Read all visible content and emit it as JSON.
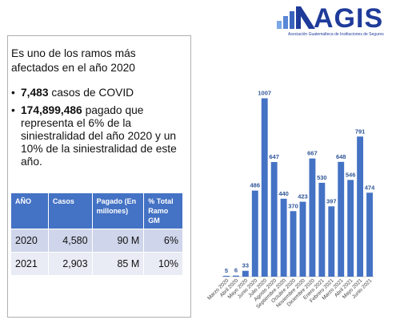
{
  "logo": {
    "text": "AGIS",
    "subtitle": "Asociación Guatemalteca de Instituciones de Seguros"
  },
  "intro": "Es uno de los ramos más afectados en el año 2020",
  "bullets": [
    {
      "bold": "7,483",
      "rest": " casos de COVID"
    },
    {
      "bold": "174,899,486",
      "rest": " pagado que representa el 6% de la siniestralidad del año 2020 y un 10% de la siniestralidad de este año."
    }
  ],
  "table": {
    "headers": [
      "AÑO",
      "Casos",
      "Pagado (En millones)",
      "% Total Ramo GM"
    ],
    "rows": [
      [
        "2020",
        "4,580",
        "90 M",
        "6%"
      ],
      [
        "2021",
        "2,903",
        "85 M",
        "10%"
      ]
    ]
  },
  "colors": {
    "bar": "#4472c4",
    "label": "#2f5597",
    "header": "#4472c4",
    "logo": "#1f3b9a"
  },
  "chart_data": {
    "type": "bar",
    "categories": [
      "Marzo 2020",
      "Abril 2020",
      "Mayo 2020",
      "Junio 2020",
      "Julio 2020",
      "Agosto 2020",
      "Septiembre 2020",
      "Octubre 2020",
      "Noviembre 2020",
      "Diciembre 2020",
      "Enero 2021",
      "Febrero 2021",
      "Marzo 2021",
      "Abril 2021",
      "Mayo 2021",
      "Junio 2021"
    ],
    "values": [
      5,
      6,
      33,
      486,
      1007,
      647,
      440,
      370,
      423,
      667,
      530,
      397,
      648,
      546,
      791,
      474
    ],
    "ylim": [
      0,
      1100
    ],
    "grid": false,
    "legend": "none"
  }
}
